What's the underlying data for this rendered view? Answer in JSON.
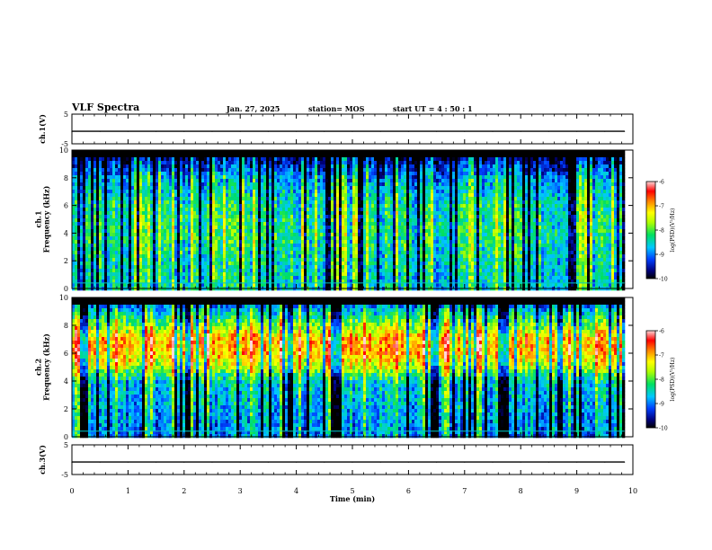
{
  "header": {
    "title": "VLF Spectra",
    "date": "Jan. 27, 2025",
    "station": "station= MOS",
    "start": "start  UT =   4 : 50 : 1"
  },
  "chart_data": [
    {
      "type": "line",
      "ylabel": "ch.1(V)",
      "ylim": [
        -5,
        5
      ],
      "yticks": [
        "5",
        "-5"
      ],
      "x": [
        0,
        0.5,
        1,
        1.5,
        2,
        2.5,
        3,
        3.5,
        4,
        4.5,
        5,
        5.5,
        6,
        6.5,
        7,
        7.5,
        8,
        8.5,
        9,
        9.5,
        9.85
      ],
      "y": [
        -0.8,
        -0.8,
        -0.8,
        -0.8,
        -0.8,
        -0.8,
        -0.8,
        -0.8,
        -0.8,
        -0.8,
        -0.8,
        -0.8,
        -0.8,
        -0.8,
        -0.8,
        -0.8,
        -0.8,
        -0.8,
        -0.8,
        -0.8,
        -0.8
      ]
    },
    {
      "type": "heatmap",
      "ylabel": "ch.1\nFrequency (kHz)",
      "ylim": [
        0,
        10
      ],
      "yticks": [
        "0",
        "2",
        "4",
        "6",
        "8",
        "10"
      ],
      "xlim": [
        0,
        10
      ],
      "data_extent_min": 9.85,
      "colorbar": {
        "label": "log(PSD)(V²/Hz)",
        "ticks": [
          "-6",
          "-7",
          "-8",
          "-9",
          "-10"
        ],
        "range": [
          -10,
          -6
        ]
      },
      "band_profile_khz": [
        0,
        2,
        4,
        6,
        8,
        10
      ],
      "band_profile_level": [
        -8.6,
        -8.5,
        -8.3,
        -8.4,
        -8.9,
        -10
      ]
    },
    {
      "type": "heatmap",
      "ylabel": "ch.2\nFrequency (kHz)",
      "ylim": [
        0,
        10
      ],
      "yticks": [
        "0",
        "2",
        "4",
        "6",
        "8",
        "10"
      ],
      "xlim": [
        0,
        10
      ],
      "data_extent_min": 9.85,
      "colorbar": {
        "label": "log(PSD)(V²/Hz)",
        "ticks": [
          "-6",
          "-7",
          "-8",
          "-9",
          "-10"
        ],
        "range": [
          -10,
          -6
        ]
      },
      "band_profile_khz": [
        0,
        2,
        4,
        5,
        6,
        7,
        8,
        9,
        10
      ],
      "band_profile_level": [
        -9.0,
        -8.8,
        -8.6,
        -7.6,
        -7.0,
        -7.0,
        -7.8,
        -8.6,
        -9.8
      ]
    },
    {
      "type": "line",
      "ylabel": "ch.3(V)",
      "ylim": [
        -5,
        5
      ],
      "yticks": [
        "5",
        "-5"
      ],
      "xlabel": "Time  (min)",
      "xticks": [
        "0",
        "1",
        "2",
        "3",
        "4",
        "5",
        "6",
        "7",
        "8",
        "9",
        "10"
      ],
      "x": [
        0,
        0.5,
        1,
        1.5,
        2,
        2.5,
        3,
        3.5,
        4,
        4.5,
        5,
        5.5,
        6,
        6.5,
        7,
        7.5,
        8,
        8.5,
        9,
        9.5,
        9.85
      ],
      "y": [
        -0.8,
        -0.8,
        -0.8,
        -0.8,
        -0.8,
        -0.8,
        -0.8,
        -0.8,
        -0.8,
        -0.8,
        -0.8,
        -0.8,
        -0.8,
        -0.8,
        -0.8,
        -0.8,
        -0.8,
        -0.8,
        -0.8,
        -0.8,
        -0.8
      ]
    }
  ]
}
